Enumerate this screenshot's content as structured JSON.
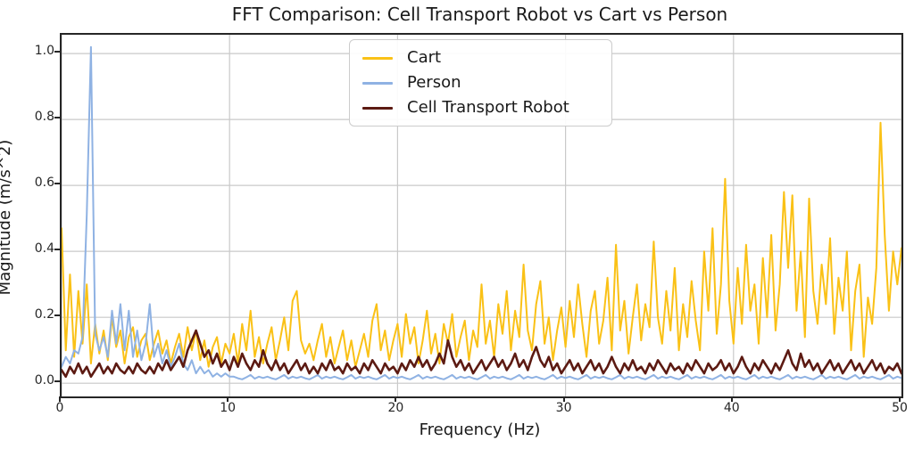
{
  "figure": {
    "title": "FFT Comparison: Cell Transport Robot vs Cart vs Person"
  },
  "chart_data": {
    "type": "line",
    "title": "FFT Comparison: Cell Transport Robot vs Cart vs Person",
    "xlabel": "Frequency (Hz)",
    "ylabel": "Magnitude (m/s^2)",
    "xlim": [
      0,
      50
    ],
    "ylim": [
      -0.04,
      1.057
    ],
    "xticks": [
      0,
      10,
      20,
      30,
      40,
      50
    ],
    "xtick_labels": [
      "0",
      "10",
      "20",
      "30",
      "40",
      "50"
    ],
    "yticks": [
      0.0,
      0.2,
      0.4,
      0.6,
      0.8,
      1.0
    ],
    "ytick_labels": [
      "0.0",
      "0.2",
      "0.4",
      "0.6",
      "0.8",
      "1.0"
    ],
    "grid": true,
    "grid_color": "#c9c9c9",
    "legend_position": "upper center",
    "x_start": 0,
    "x_step": 0.25,
    "series": [
      {
        "name": "Cart",
        "color": "#FAC116",
        "width": 2,
        "values": [
          0.47,
          0.1,
          0.33,
          0.08,
          0.28,
          0.12,
          0.3,
          0.06,
          0.18,
          0.09,
          0.16,
          0.07,
          0.2,
          0.11,
          0.16,
          0.06,
          0.14,
          0.17,
          0.08,
          0.13,
          0.15,
          0.07,
          0.12,
          0.16,
          0.09,
          0.13,
          0.06,
          0.11,
          0.15,
          0.08,
          0.17,
          0.1,
          0.16,
          0.07,
          0.13,
          0.05,
          0.11,
          0.14,
          0.06,
          0.12,
          0.09,
          0.15,
          0.06,
          0.18,
          0.1,
          0.22,
          0.08,
          0.14,
          0.06,
          0.12,
          0.17,
          0.07,
          0.13,
          0.2,
          0.1,
          0.25,
          0.28,
          0.13,
          0.09,
          0.12,
          0.07,
          0.13,
          0.18,
          0.08,
          0.14,
          0.06,
          0.11,
          0.16,
          0.07,
          0.13,
          0.05,
          0.1,
          0.15,
          0.08,
          0.19,
          0.24,
          0.1,
          0.16,
          0.07,
          0.13,
          0.18,
          0.08,
          0.21,
          0.12,
          0.17,
          0.06,
          0.13,
          0.22,
          0.09,
          0.15,
          0.06,
          0.18,
          0.12,
          0.21,
          0.08,
          0.14,
          0.19,
          0.07,
          0.16,
          0.11,
          0.3,
          0.12,
          0.19,
          0.08,
          0.24,
          0.15,
          0.28,
          0.1,
          0.22,
          0.14,
          0.36,
          0.16,
          0.1,
          0.24,
          0.31,
          0.12,
          0.2,
          0.07,
          0.16,
          0.23,
          0.11,
          0.25,
          0.14,
          0.3,
          0.18,
          0.08,
          0.22,
          0.28,
          0.12,
          0.19,
          0.32,
          0.1,
          0.42,
          0.16,
          0.25,
          0.09,
          0.2,
          0.3,
          0.13,
          0.24,
          0.17,
          0.43,
          0.2,
          0.12,
          0.28,
          0.16,
          0.35,
          0.1,
          0.24,
          0.14,
          0.31,
          0.19,
          0.1,
          0.4,
          0.22,
          0.47,
          0.15,
          0.3,
          0.62,
          0.25,
          0.12,
          0.35,
          0.18,
          0.42,
          0.22,
          0.3,
          0.12,
          0.38,
          0.2,
          0.45,
          0.16,
          0.3,
          0.58,
          0.35,
          0.57,
          0.22,
          0.4,
          0.14,
          0.56,
          0.28,
          0.18,
          0.36,
          0.24,
          0.44,
          0.15,
          0.32,
          0.22,
          0.4,
          0.1,
          0.28,
          0.36,
          0.08,
          0.26,
          0.18,
          0.35,
          0.79,
          0.45,
          0.22,
          0.4,
          0.3,
          0.41
        ]
      },
      {
        "name": "Person",
        "color": "#8FB2E3",
        "width": 2,
        "values": [
          0.05,
          0.08,
          0.06,
          0.1,
          0.09,
          0.14,
          0.51,
          1.02,
          0.15,
          0.1,
          0.14,
          0.08,
          0.22,
          0.12,
          0.24,
          0.1,
          0.22,
          0.08,
          0.16,
          0.07,
          0.12,
          0.24,
          0.08,
          0.12,
          0.06,
          0.1,
          0.05,
          0.08,
          0.12,
          0.06,
          0.04,
          0.07,
          0.03,
          0.05,
          0.03,
          0.04,
          0.02,
          0.03,
          0.02,
          0.03,
          0.02,
          0.02,
          0.015,
          0.012,
          0.018,
          0.025,
          0.014,
          0.02,
          0.016,
          0.02,
          0.015,
          0.012,
          0.018,
          0.025,
          0.014,
          0.02,
          0.016,
          0.02,
          0.015,
          0.012,
          0.018,
          0.025,
          0.014,
          0.02,
          0.016,
          0.02,
          0.015,
          0.012,
          0.018,
          0.025,
          0.014,
          0.02,
          0.016,
          0.02,
          0.015,
          0.012,
          0.018,
          0.025,
          0.014,
          0.02,
          0.016,
          0.02,
          0.015,
          0.012,
          0.018,
          0.025,
          0.014,
          0.02,
          0.016,
          0.02,
          0.015,
          0.012,
          0.018,
          0.025,
          0.014,
          0.02,
          0.016,
          0.02,
          0.015,
          0.012,
          0.018,
          0.025,
          0.014,
          0.02,
          0.016,
          0.02,
          0.015,
          0.012,
          0.018,
          0.025,
          0.014,
          0.02,
          0.016,
          0.02,
          0.015,
          0.012,
          0.018,
          0.025,
          0.014,
          0.02,
          0.016,
          0.02,
          0.015,
          0.012,
          0.018,
          0.025,
          0.014,
          0.02,
          0.016,
          0.02,
          0.015,
          0.012,
          0.018,
          0.025,
          0.014,
          0.02,
          0.016,
          0.02,
          0.015,
          0.012,
          0.018,
          0.025,
          0.014,
          0.02,
          0.016,
          0.02,
          0.015,
          0.012,
          0.018,
          0.025,
          0.014,
          0.02,
          0.016,
          0.02,
          0.015,
          0.012,
          0.018,
          0.025,
          0.014,
          0.02,
          0.016,
          0.02,
          0.015,
          0.012,
          0.018,
          0.025,
          0.014,
          0.02,
          0.016,
          0.02,
          0.015,
          0.012,
          0.018,
          0.025,
          0.014,
          0.02,
          0.016,
          0.02,
          0.015,
          0.012,
          0.018,
          0.025,
          0.014,
          0.02,
          0.016,
          0.02,
          0.015,
          0.012,
          0.018,
          0.025,
          0.014,
          0.02,
          0.016,
          0.02,
          0.015,
          0.012,
          0.018,
          0.025,
          0.014,
          0.02,
          0.016
        ]
      },
      {
        "name": "Cell Transport Robot",
        "color": "#5C1A12",
        "width": 2.6,
        "values": [
          0.04,
          0.02,
          0.05,
          0.03,
          0.06,
          0.03,
          0.05,
          0.02,
          0.04,
          0.06,
          0.03,
          0.05,
          0.03,
          0.06,
          0.04,
          0.03,
          0.05,
          0.03,
          0.06,
          0.04,
          0.03,
          0.05,
          0.03,
          0.06,
          0.04,
          0.07,
          0.04,
          0.06,
          0.08,
          0.05,
          0.1,
          0.13,
          0.16,
          0.12,
          0.08,
          0.1,
          0.06,
          0.09,
          0.05,
          0.07,
          0.04,
          0.08,
          0.05,
          0.09,
          0.06,
          0.04,
          0.07,
          0.05,
          0.1,
          0.06,
          0.04,
          0.07,
          0.04,
          0.06,
          0.03,
          0.05,
          0.07,
          0.04,
          0.06,
          0.03,
          0.05,
          0.03,
          0.06,
          0.04,
          0.07,
          0.04,
          0.05,
          0.03,
          0.06,
          0.04,
          0.05,
          0.03,
          0.06,
          0.04,
          0.07,
          0.05,
          0.03,
          0.06,
          0.04,
          0.05,
          0.03,
          0.06,
          0.04,
          0.07,
          0.05,
          0.08,
          0.05,
          0.07,
          0.04,
          0.06,
          0.09,
          0.06,
          0.13,
          0.08,
          0.05,
          0.07,
          0.04,
          0.06,
          0.03,
          0.05,
          0.07,
          0.04,
          0.06,
          0.08,
          0.05,
          0.07,
          0.04,
          0.06,
          0.09,
          0.05,
          0.07,
          0.04,
          0.08,
          0.11,
          0.07,
          0.05,
          0.08,
          0.04,
          0.06,
          0.03,
          0.05,
          0.07,
          0.04,
          0.06,
          0.03,
          0.05,
          0.07,
          0.04,
          0.06,
          0.03,
          0.05,
          0.08,
          0.05,
          0.03,
          0.06,
          0.04,
          0.07,
          0.04,
          0.05,
          0.03,
          0.06,
          0.04,
          0.07,
          0.05,
          0.03,
          0.06,
          0.04,
          0.05,
          0.03,
          0.06,
          0.04,
          0.07,
          0.05,
          0.03,
          0.06,
          0.04,
          0.05,
          0.07,
          0.04,
          0.06,
          0.03,
          0.05,
          0.08,
          0.05,
          0.03,
          0.06,
          0.04,
          0.07,
          0.05,
          0.03,
          0.06,
          0.04,
          0.07,
          0.1,
          0.06,
          0.04,
          0.09,
          0.05,
          0.07,
          0.04,
          0.06,
          0.03,
          0.05,
          0.07,
          0.04,
          0.06,
          0.03,
          0.05,
          0.07,
          0.04,
          0.06,
          0.03,
          0.05,
          0.07,
          0.04,
          0.06,
          0.03,
          0.05,
          0.04,
          0.06,
          0.03
        ]
      }
    ]
  }
}
